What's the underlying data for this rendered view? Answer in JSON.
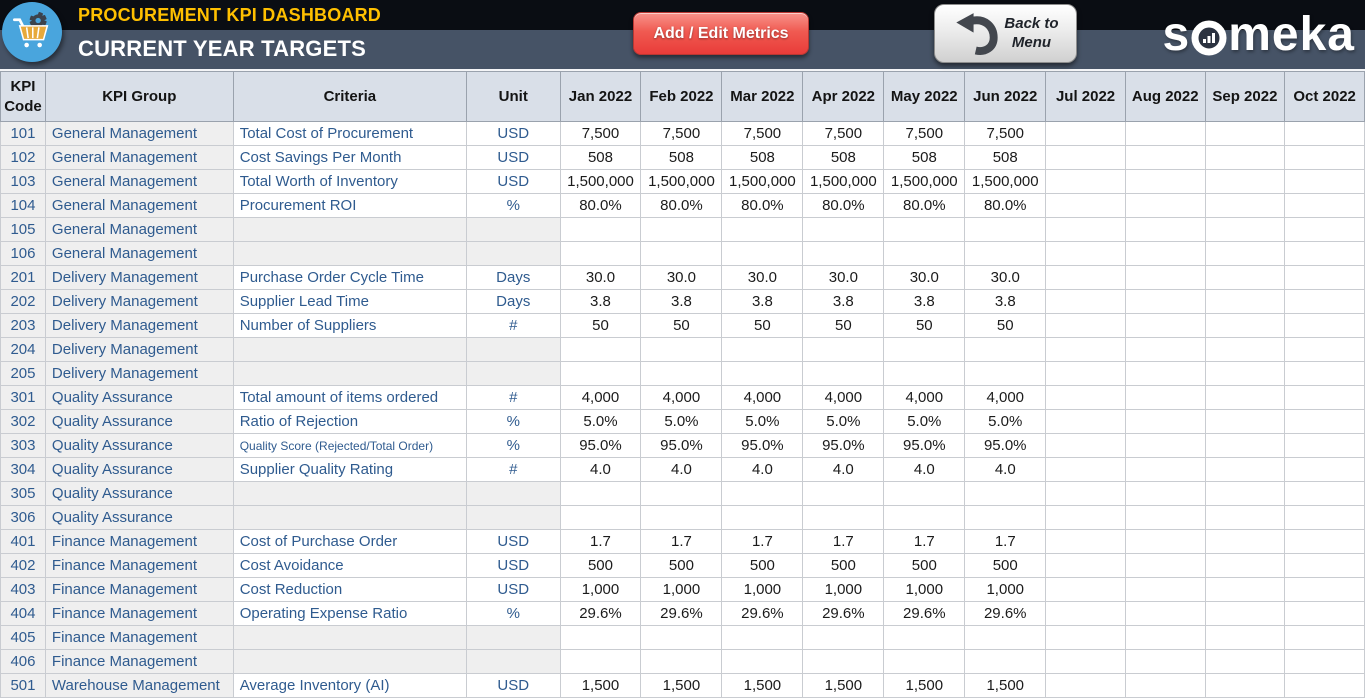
{
  "header": {
    "app_title": "PROCUREMENT KPI DASHBOARD",
    "page_title": "CURRENT YEAR TARGETS",
    "add_edit_button": "Add / Edit Metrics",
    "back_button_line1": "Back to",
    "back_button_line2": "Menu",
    "brand_first": "s",
    "brand_rest": "meka"
  },
  "colors": {
    "top_band": "#0a0d13",
    "title_band": "#465366",
    "accent_gold": "#FFC000",
    "button_red": "#ED4C45",
    "table_header_fill": "#D9DFE8",
    "row_gray_fill": "#EFEFEF",
    "kpi_text_blue": "#2F5B8F",
    "logo_circle_blue": "#49A5DD"
  },
  "table": {
    "columns": [
      "KPI Code",
      "KPI Group",
      "Criteria",
      "Unit"
    ],
    "months": [
      "Jan 2022",
      "Feb 2022",
      "Mar 2022",
      "Apr 2022",
      "May 2022",
      "Jun 2022",
      "Jul 2022",
      "Aug 2022",
      "Sep 2022",
      "Oct 2022"
    ],
    "rows": [
      {
        "code": "101",
        "group": "General Management",
        "criteria": "Total Cost of Procurement",
        "unit": "USD",
        "values": [
          "7,500",
          "7,500",
          "7,500",
          "7,500",
          "7,500",
          "7,500",
          "",
          "",
          "",
          ""
        ]
      },
      {
        "code": "102",
        "group": "General Management",
        "criteria": "Cost Savings Per Month",
        "unit": "USD",
        "values": [
          "508",
          "508",
          "508",
          "508",
          "508",
          "508",
          "",
          "",
          "",
          ""
        ]
      },
      {
        "code": "103",
        "group": "General Management",
        "criteria": "Total Worth of Inventory",
        "unit": "USD",
        "values": [
          "1,500,000",
          "1,500,000",
          "1,500,000",
          "1,500,000",
          "1,500,000",
          "1,500,000",
          "",
          "",
          "",
          ""
        ]
      },
      {
        "code": "104",
        "group": "General Management",
        "criteria": "Procurement ROI",
        "unit": "%",
        "values": [
          "80.0%",
          "80.0%",
          "80.0%",
          "80.0%",
          "80.0%",
          "80.0%",
          "",
          "",
          "",
          ""
        ]
      },
      {
        "code": "105",
        "group": "General Management",
        "criteria": "",
        "unit": "",
        "values": [
          "",
          "",
          "",
          "",
          "",
          "",
          "",
          "",
          "",
          ""
        ]
      },
      {
        "code": "106",
        "group": "General Management",
        "criteria": "",
        "unit": "",
        "values": [
          "",
          "",
          "",
          "",
          "",
          "",
          "",
          "",
          "",
          ""
        ]
      },
      {
        "code": "201",
        "group": "Delivery Management",
        "criteria": "Purchase Order Cycle Time",
        "unit": "Days",
        "values": [
          "30.0",
          "30.0",
          "30.0",
          "30.0",
          "30.0",
          "30.0",
          "",
          "",
          "",
          ""
        ]
      },
      {
        "code": "202",
        "group": "Delivery Management",
        "criteria": "Supplier Lead Time",
        "unit": "Days",
        "values": [
          "3.8",
          "3.8",
          "3.8",
          "3.8",
          "3.8",
          "3.8",
          "",
          "",
          "",
          ""
        ]
      },
      {
        "code": "203",
        "group": "Delivery Management",
        "criteria": "Number of Suppliers",
        "unit": "#",
        "values": [
          "50",
          "50",
          "50",
          "50",
          "50",
          "50",
          "",
          "",
          "",
          ""
        ]
      },
      {
        "code": "204",
        "group": "Delivery Management",
        "criteria": "",
        "unit": "",
        "values": [
          "",
          "",
          "",
          "",
          "",
          "",
          "",
          "",
          "",
          ""
        ]
      },
      {
        "code": "205",
        "group": "Delivery Management",
        "criteria": "",
        "unit": "",
        "values": [
          "",
          "",
          "",
          "",
          "",
          "",
          "",
          "",
          "",
          ""
        ]
      },
      {
        "code": "301",
        "group": "Quality Assurance",
        "criteria": "Total amount of items ordered",
        "unit": "#",
        "values": [
          "4,000",
          "4,000",
          "4,000",
          "4,000",
          "4,000",
          "4,000",
          "",
          "",
          "",
          ""
        ]
      },
      {
        "code": "302",
        "group": "Quality Assurance",
        "criteria": "Ratio of Rejection",
        "unit": "%",
        "values": [
          "5.0%",
          "5.0%",
          "5.0%",
          "5.0%",
          "5.0%",
          "5.0%",
          "",
          "",
          "",
          ""
        ]
      },
      {
        "code": "303",
        "group": "Quality Assurance",
        "criteria": "Quality Score (Rejected/Total Order)",
        "unit": "%",
        "values": [
          "95.0%",
          "95.0%",
          "95.0%",
          "95.0%",
          "95.0%",
          "95.0%",
          "",
          "",
          "",
          ""
        ]
      },
      {
        "code": "304",
        "group": "Quality Assurance",
        "criteria": "Supplier Quality Rating",
        "unit": "#",
        "values": [
          "4.0",
          "4.0",
          "4.0",
          "4.0",
          "4.0",
          "4.0",
          "",
          "",
          "",
          ""
        ]
      },
      {
        "code": "305",
        "group": "Quality Assurance",
        "criteria": "",
        "unit": "",
        "values": [
          "",
          "",
          "",
          "",
          "",
          "",
          "",
          "",
          "",
          ""
        ]
      },
      {
        "code": "306",
        "group": "Quality Assurance",
        "criteria": "",
        "unit": "",
        "values": [
          "",
          "",
          "",
          "",
          "",
          "",
          "",
          "",
          "",
          ""
        ]
      },
      {
        "code": "401",
        "group": "Finance Management",
        "criteria": "Cost of Purchase Order",
        "unit": "USD",
        "values": [
          "1.7",
          "1.7",
          "1.7",
          "1.7",
          "1.7",
          "1.7",
          "",
          "",
          "",
          ""
        ]
      },
      {
        "code": "402",
        "group": "Finance Management",
        "criteria": "Cost Avoidance",
        "unit": "USD",
        "values": [
          "500",
          "500",
          "500",
          "500",
          "500",
          "500",
          "",
          "",
          "",
          ""
        ]
      },
      {
        "code": "403",
        "group": "Finance Management",
        "criteria": "Cost Reduction",
        "unit": "USD",
        "values": [
          "1,000",
          "1,000",
          "1,000",
          "1,000",
          "1,000",
          "1,000",
          "",
          "",
          "",
          ""
        ]
      },
      {
        "code": "404",
        "group": "Finance Management",
        "criteria": "Operating Expense Ratio",
        "unit": "%",
        "values": [
          "29.6%",
          "29.6%",
          "29.6%",
          "29.6%",
          "29.6%",
          "29.6%",
          "",
          "",
          "",
          ""
        ]
      },
      {
        "code": "405",
        "group": "Finance Management",
        "criteria": "",
        "unit": "",
        "values": [
          "",
          "",
          "",
          "",
          "",
          "",
          "",
          "",
          "",
          ""
        ]
      },
      {
        "code": "406",
        "group": "Finance Management",
        "criteria": "",
        "unit": "",
        "values": [
          "",
          "",
          "",
          "",
          "",
          "",
          "",
          "",
          "",
          ""
        ]
      },
      {
        "code": "501",
        "group": "Warehouse Management",
        "criteria": "Average Inventory (AI)",
        "unit": "USD",
        "values": [
          "1,500",
          "1,500",
          "1,500",
          "1,500",
          "1,500",
          "1,500",
          "",
          "",
          "",
          ""
        ]
      }
    ]
  }
}
